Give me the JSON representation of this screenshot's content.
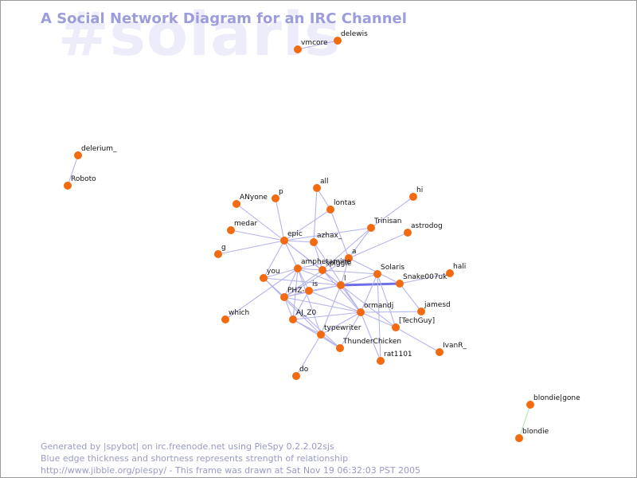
{
  "diagram": {
    "watermark": "#solaris",
    "title": "A Social Network Diagram for an IRC Channel",
    "footer": [
      "Generated by |spybot| on irc.freenode.net using PieSpy 0.2.2.02sjs",
      "Blue edge thickness and shortness represents strength of relationship",
      "http://www.jibble.org/piespy/ - This frame was drawn at Sat Nov 19 06:32:03 PST 2005"
    ],
    "colors": {
      "node": "#f26b11",
      "edge": "#b4b4ee",
      "strong_edge": "#6e6ee8",
      "green_edge": "#aee8ae",
      "title": "#9d9ddb",
      "watermark": "#ececfb",
      "footer": "#9a9ac8"
    },
    "nodes": [
      "vmcore",
      "delewis",
      "delerium_",
      "Roboto",
      "blondie|gone",
      "blondie",
      "all",
      "hi",
      "ANyone",
      "p",
      "lontas",
      "Trinisan",
      "astrodog",
      "medar",
      "epic",
      "azhax_",
      "g",
      "a",
      "amphetamine",
      "spiggle",
      "Solaris",
      "hali",
      "you",
      "Snake007uk",
      "is",
      "PHZ-",
      "l",
      "jamesd",
      "ormandj",
      "which",
      "AJ_Z0",
      "[TechGuy]",
      "typewriter",
      "IvanR_",
      "ThunderChicken",
      "rat1101",
      "do"
    ],
    "edges": [
      [
        "vmcore",
        "delewis",
        1
      ],
      [
        "delerium_",
        "Roboto",
        1
      ],
      [
        "blondie|gone",
        "blondie",
        1
      ],
      [
        "l",
        "Snake007uk",
        3
      ],
      [
        "Snake007uk",
        "hali",
        1
      ],
      [
        "Snake007uk",
        "jamesd",
        1
      ],
      [
        "Snake007uk",
        "a",
        1
      ],
      [
        "l",
        "Solaris",
        1
      ],
      [
        "l",
        "a",
        1
      ],
      [
        "l",
        "spiggle",
        1
      ],
      [
        "l",
        "amphetamine",
        1
      ],
      [
        "l",
        "epic",
        1
      ],
      [
        "l",
        "is",
        1
      ],
      [
        "l",
        "PHZ-",
        1
      ],
      [
        "l",
        "ormandj",
        1
      ],
      [
        "l",
        "typewriter",
        1
      ],
      [
        "l",
        "[TechGuy]",
        1
      ],
      [
        "l",
        "you",
        1
      ],
      [
        "a",
        "lontas",
        1
      ],
      [
        "a",
        "Trinisan",
        1
      ],
      [
        "a",
        "astrodog",
        1
      ],
      [
        "a",
        "amphetamine",
        1
      ],
      [
        "a",
        "PHZ-",
        1
      ],
      [
        "epic",
        "ANyone",
        1
      ],
      [
        "epic",
        "p",
        1
      ],
      [
        "epic",
        "medar",
        1
      ],
      [
        "epic",
        "g",
        1
      ],
      [
        "epic",
        "lontas",
        1
      ],
      [
        "epic",
        "amphetamine",
        1
      ],
      [
        "epic",
        "azhax_",
        1
      ],
      [
        "epic",
        "you",
        1
      ],
      [
        "epic",
        "spiggle",
        1
      ],
      [
        "epic",
        "Trinisan",
        1
      ],
      [
        "lontas",
        "all",
        1
      ],
      [
        "Trinisan",
        "hi",
        1
      ],
      [
        "Trinisan",
        "spiggle",
        1
      ],
      [
        "azhax_",
        "all",
        1
      ],
      [
        "azhax_",
        "spiggle",
        1
      ],
      [
        "azhax_",
        "ormandj",
        1
      ],
      [
        "amphetamine",
        "you",
        1
      ],
      [
        "amphetamine",
        "PHZ-",
        1
      ],
      [
        "amphetamine",
        "is",
        1
      ],
      [
        "amphetamine",
        "spiggle",
        1
      ],
      [
        "amphetamine",
        "AJ_Z0",
        1
      ],
      [
        "amphetamine",
        "which",
        1
      ],
      [
        "amphetamine",
        "typewriter",
        1
      ],
      [
        "spiggle",
        "PHZ-",
        1
      ],
      [
        "spiggle",
        "ormandj",
        1
      ],
      [
        "spiggle",
        "Solaris",
        1
      ],
      [
        "you",
        "PHZ-",
        1
      ],
      [
        "you",
        "typewriter",
        1
      ],
      [
        "you",
        "ThunderChicken",
        1
      ],
      [
        "PHZ-",
        "is",
        1
      ],
      [
        "PHZ-",
        "AJ_Z0",
        1
      ],
      [
        "PHZ-",
        "ormandj",
        1
      ],
      [
        "is",
        "AJ_Z0",
        1
      ],
      [
        "is",
        "ormandj",
        1
      ],
      [
        "ormandj",
        "typewriter",
        1
      ],
      [
        "ormandj",
        "[TechGuy]",
        1
      ],
      [
        "ormandj",
        "Solaris",
        1
      ],
      [
        "ormandj",
        "jamesd",
        1
      ],
      [
        "ormandj",
        "ThunderChicken",
        1
      ],
      [
        "ormandj",
        "rat1101",
        1
      ],
      [
        "ormandj",
        "AJ_Z0",
        1
      ],
      [
        "[TechGuy]",
        "IvanR_",
        1
      ],
      [
        "[TechGuy]",
        "Solaris",
        1
      ],
      [
        "typewriter",
        "AJ_Z0",
        1
      ],
      [
        "typewriter",
        "ThunderChicken",
        1
      ],
      [
        "typewriter",
        "do",
        1
      ],
      [
        "AJ_Z0",
        "ThunderChicken",
        1
      ],
      [
        "Solaris",
        "rat1101",
        1
      ]
    ]
  }
}
